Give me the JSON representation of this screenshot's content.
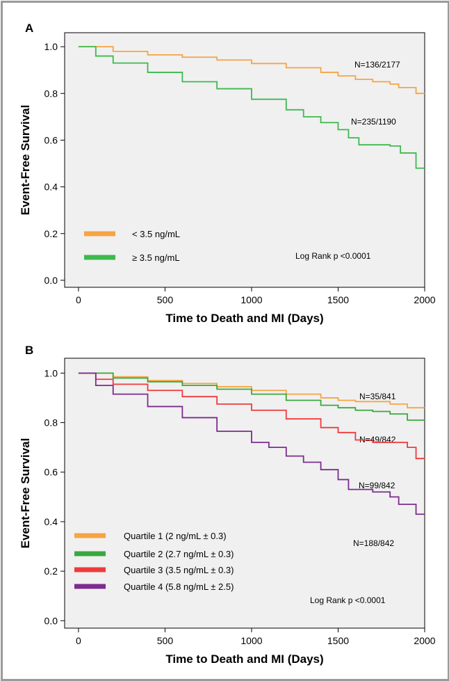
{
  "chart_data": [
    {
      "type": "line",
      "panel_label": "A",
      "xlabel": "Time to Death and MI (Days)",
      "ylabel": "Event-Free Survival",
      "xlim": [
        -80,
        2000
      ],
      "ylim": [
        -0.03,
        1.06
      ],
      "xticks": [
        0,
        500,
        1000,
        1500,
        2000
      ],
      "yticks": [
        0.0,
        0.2,
        0.4,
        0.6,
        0.8,
        1.0
      ],
      "ytick_labels": [
        "0.0",
        "0.2",
        "0.4",
        "0.6",
        "0.8",
        "1.0"
      ],
      "xtick_labels": [
        "0",
        "500",
        "1000",
        "1500",
        "2000"
      ],
      "grid": false,
      "legend_position": "bottom-left",
      "annotation": "Log Rank p <0.0001",
      "series": [
        {
          "name": "< 3.5 ng/mL",
          "color": "#f7a443",
          "count_label": "N=136/2177",
          "x": [
            0,
            200,
            400,
            600,
            800,
            1000,
            1200,
            1400,
            1500,
            1600,
            1700,
            1800,
            1850,
            1950,
            2000
          ],
          "y": [
            1.0,
            0.98,
            0.965,
            0.955,
            0.943,
            0.928,
            0.91,
            0.89,
            0.875,
            0.86,
            0.85,
            0.84,
            0.825,
            0.8,
            0.8
          ]
        },
        {
          "name": "≥ 3.5 ng/mL",
          "color": "#3db94d",
          "count_label": "N=235/1190",
          "x": [
            0,
            100,
            200,
            400,
            600,
            800,
            1000,
            1200,
            1300,
            1400,
            1500,
            1560,
            1620,
            1700,
            1800,
            1860,
            1950,
            2000
          ],
          "y": [
            1.0,
            0.96,
            0.93,
            0.89,
            0.85,
            0.82,
            0.775,
            0.73,
            0.7,
            0.675,
            0.645,
            0.61,
            0.58,
            0.58,
            0.575,
            0.545,
            0.48,
            0.48
          ]
        }
      ]
    },
    {
      "type": "line",
      "panel_label": "B",
      "xlabel": "Time to Death and MI (Days)",
      "ylabel": "Event-Free Survival",
      "xlim": [
        -80,
        2000
      ],
      "ylim": [
        -0.03,
        1.06
      ],
      "xticks": [
        0,
        500,
        1000,
        1500,
        2000
      ],
      "yticks": [
        0.0,
        0.2,
        0.4,
        0.6,
        0.8,
        1.0
      ],
      "ytick_labels": [
        "0.0",
        "0.2",
        "0.4",
        "0.6",
        "0.8",
        "1.0"
      ],
      "xtick_labels": [
        "0",
        "500",
        "1000",
        "1500",
        "2000"
      ],
      "grid": false,
      "legend_position": "bottom-left",
      "annotation": "Log Rank p <0.0001",
      "series": [
        {
          "name": "Quartile 1 (2 ng/mL ± 0.3)",
          "color": "#f7a443",
          "count_label": "N=35/841",
          "x": [
            0,
            200,
            400,
            600,
            800,
            1000,
            1200,
            1400,
            1500,
            1600,
            1800,
            1900,
            2000
          ],
          "y": [
            1.0,
            0.985,
            0.97,
            0.958,
            0.945,
            0.93,
            0.915,
            0.9,
            0.89,
            0.885,
            0.875,
            0.86,
            0.86
          ]
        },
        {
          "name": "Quartile 2 (2.7 ng/mL ± 0.3)",
          "color": "#3aa83e",
          "count_label": "N=49/842",
          "x": [
            0,
            200,
            400,
            600,
            800,
            1000,
            1200,
            1400,
            1500,
            1600,
            1700,
            1800,
            1900,
            2000
          ],
          "y": [
            1.0,
            0.98,
            0.965,
            0.95,
            0.935,
            0.915,
            0.89,
            0.87,
            0.86,
            0.85,
            0.845,
            0.835,
            0.81,
            0.81
          ]
        },
        {
          "name": "Quartile 3 (3.5 ng/mL ± 0.3)",
          "color": "#ee3a3c",
          "count_label": "N=99/842",
          "x": [
            0,
            100,
            200,
            400,
            600,
            800,
            1000,
            1200,
            1400,
            1500,
            1600,
            1700,
            1800,
            1900,
            1950,
            2000
          ],
          "y": [
            1.0,
            0.975,
            0.955,
            0.93,
            0.905,
            0.875,
            0.85,
            0.815,
            0.78,
            0.76,
            0.73,
            0.72,
            0.72,
            0.7,
            0.655,
            0.655
          ]
        },
        {
          "name": "Quartile 4 (5.8 ng/mL ± 2.5)",
          "color": "#7b2c8e",
          "count_label": "N=188/842",
          "x": [
            0,
            100,
            200,
            400,
            600,
            800,
            1000,
            1100,
            1200,
            1300,
            1400,
            1500,
            1560,
            1600,
            1700,
            1800,
            1850,
            1950,
            2000
          ],
          "y": [
            1.0,
            0.95,
            0.915,
            0.865,
            0.82,
            0.765,
            0.72,
            0.7,
            0.665,
            0.64,
            0.61,
            0.57,
            0.53,
            0.53,
            0.52,
            0.5,
            0.47,
            0.43,
            0.43
          ]
        }
      ]
    }
  ]
}
